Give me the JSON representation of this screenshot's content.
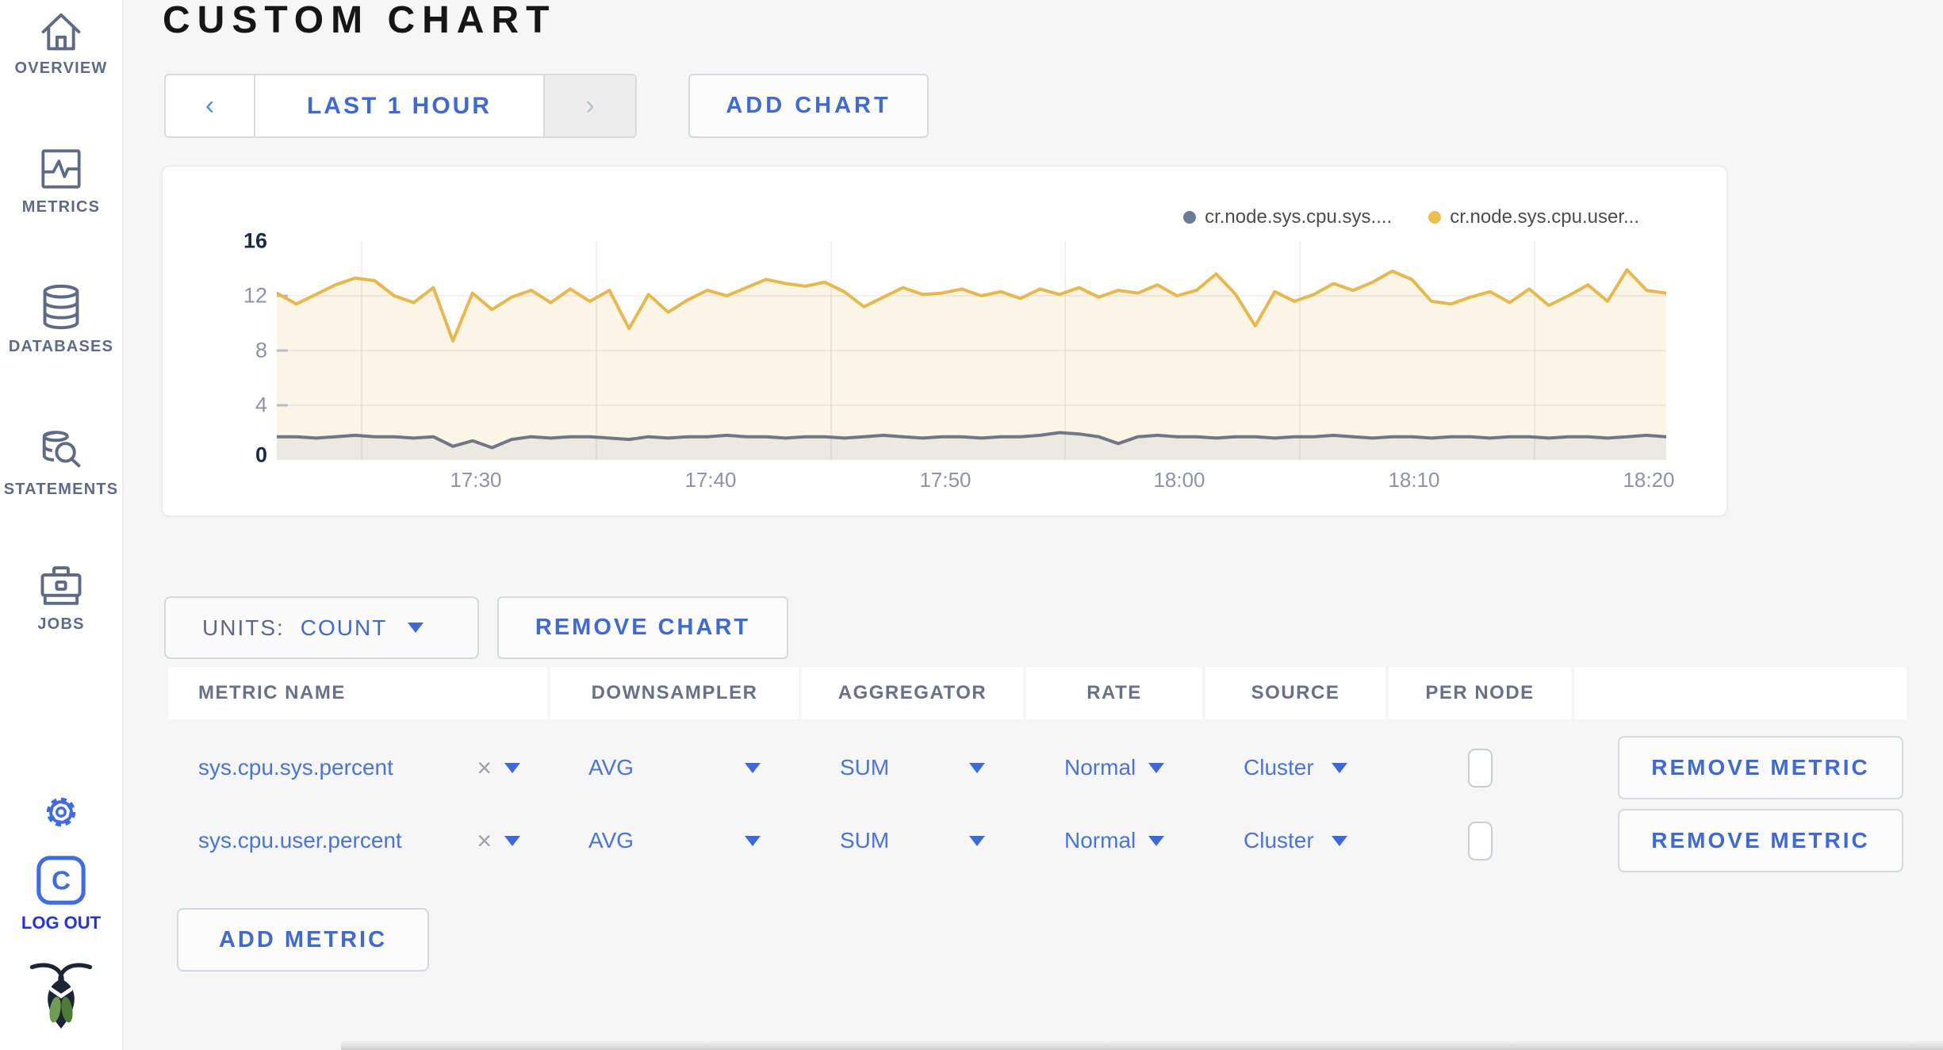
{
  "sidebar": {
    "items": [
      {
        "id": "overview",
        "label": "OVERVIEW"
      },
      {
        "id": "metrics",
        "label": "METRICS"
      },
      {
        "id": "databases",
        "label": "DATABASES"
      },
      {
        "id": "statements",
        "label": "STATEMENTS"
      },
      {
        "id": "jobs",
        "label": "JOBS"
      }
    ],
    "logout_label": "LOG OUT",
    "item_color": "#5E6B87",
    "accent_color": "#3E6BEA",
    "logout_color": "#2330EC"
  },
  "page": {
    "title": "CUSTOM CHART"
  },
  "toolbar": {
    "prev_icon": "‹",
    "time_range_label": "LAST 1 HOUR",
    "next_icon": "›",
    "add_chart_label": "ADD CHART"
  },
  "chart": {
    "legend": [
      {
        "label": "cr.node.sys.cpu.sys....",
        "color": "#6B7A97"
      },
      {
        "label": "cr.node.sys.cpu.user...",
        "color": "#EDBE4C"
      }
    ]
  },
  "chart_data": {
    "type": "line",
    "title": "",
    "xlabel": "",
    "ylabel": "",
    "ylim": [
      0,
      16
    ],
    "yticks": [
      "16",
      "12",
      "8",
      "4",
      "0"
    ],
    "xticks": [
      "17:30",
      "17:40",
      "17:50",
      "18:00",
      "18:10",
      "18:20"
    ],
    "x_domain": [
      "17:26",
      "18:26"
    ],
    "grid": true,
    "legend_position": "top-right",
    "series": [
      {
        "name": "cr.node.sys.cpu.sys.percent",
        "color": "#6F7787",
        "fill": "#ECE9E0",
        "values": [
          1.7,
          1.7,
          1.6,
          1.7,
          1.8,
          1.7,
          1.7,
          1.6,
          1.7,
          1.0,
          1.4,
          0.9,
          1.5,
          1.7,
          1.6,
          1.7,
          1.7,
          1.6,
          1.5,
          1.7,
          1.6,
          1.7,
          1.7,
          1.8,
          1.7,
          1.7,
          1.6,
          1.7,
          1.7,
          1.6,
          1.7,
          1.8,
          1.7,
          1.6,
          1.7,
          1.7,
          1.6,
          1.7,
          1.7,
          1.8,
          2.0,
          1.9,
          1.7,
          1.2,
          1.7,
          1.8,
          1.7,
          1.7,
          1.6,
          1.7,
          1.7,
          1.6,
          1.7,
          1.7,
          1.8,
          1.7,
          1.6,
          1.7,
          1.7,
          1.6,
          1.7,
          1.7,
          1.6,
          1.7,
          1.7,
          1.6,
          1.7,
          1.7,
          1.6,
          1.7,
          1.8,
          1.7
        ]
      },
      {
        "name": "cr.node.sys.cpu.user.percent",
        "color": "#E9B84A",
        "fill": "#FAF5E7",
        "values": [
          12.2,
          11.4,
          12.1,
          12.8,
          13.3,
          13.1,
          12.0,
          11.5,
          12.6,
          8.7,
          12.2,
          11.0,
          11.9,
          12.4,
          11.5,
          12.5,
          11.6,
          12.4,
          9.6,
          12.1,
          10.8,
          11.7,
          12.4,
          12.0,
          12.6,
          13.2,
          12.9,
          12.7,
          13.0,
          12.3,
          11.2,
          11.9,
          12.6,
          12.1,
          12.2,
          12.5,
          12.0,
          12.3,
          11.8,
          12.5,
          12.1,
          12.6,
          11.9,
          12.4,
          12.2,
          12.8,
          12.0,
          12.4,
          13.6,
          12.1,
          9.8,
          12.3,
          11.6,
          12.1,
          12.9,
          12.4,
          13.0,
          13.8,
          13.2,
          11.6,
          11.4,
          11.9,
          12.3,
          11.5,
          12.5,
          11.3,
          12.0,
          12.8,
          11.6,
          13.9,
          12.4,
          12.2
        ]
      }
    ]
  },
  "units_bar": {
    "units_label": "UNITS:",
    "units_value": "COUNT",
    "remove_chart_label": "REMOVE CHART"
  },
  "metrics_table": {
    "columns": [
      "METRIC NAME",
      "DOWNSAMPLER",
      "AGGREGATOR",
      "RATE",
      "SOURCE",
      "PER NODE"
    ],
    "rows": [
      {
        "name": "sys.cpu.sys.percent",
        "clear_icon": "×",
        "downsampler": "AVG",
        "aggregator": "SUM",
        "rate": "Normal",
        "source": "Cluster",
        "per_node": false,
        "remove_label": "REMOVE METRIC"
      },
      {
        "name": "sys.cpu.user.percent",
        "clear_icon": "×",
        "downsampler": "AVG",
        "aggregator": "SUM",
        "rate": "Normal",
        "source": "Cluster",
        "per_node": false,
        "remove_label": "REMOVE METRIC"
      }
    ],
    "add_metric_label": "ADD METRIC"
  }
}
